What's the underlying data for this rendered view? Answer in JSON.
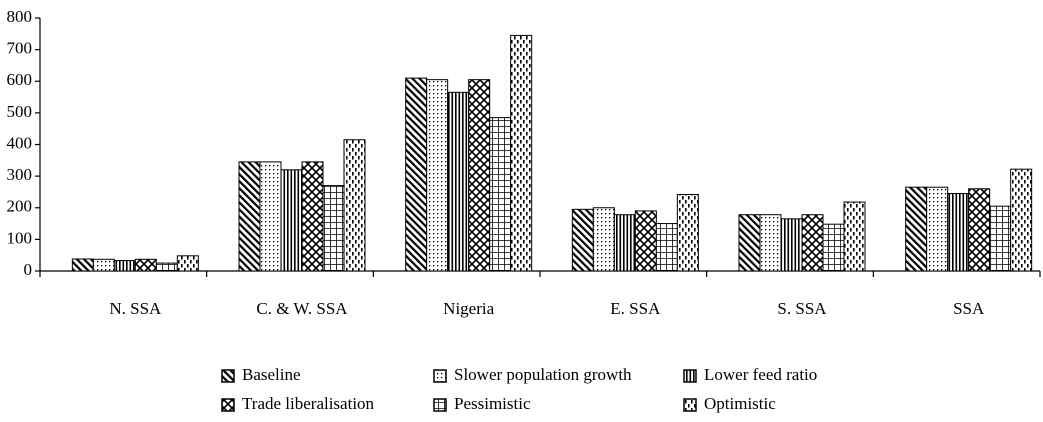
{
  "chart_data": {
    "type": "bar",
    "categories": [
      "N. SSA",
      "C. & W. SSA",
      "Nigeria",
      "E. SSA",
      "S. SSA",
      "SSA"
    ],
    "series": [
      {
        "name": "Baseline",
        "pattern": "diag",
        "values": [
          38,
          345,
          610,
          195,
          178,
          265
        ]
      },
      {
        "name": "Slower population growth",
        "pattern": "dots",
        "values": [
          37,
          345,
          605,
          200,
          178,
          265
        ]
      },
      {
        "name": "Lower feed ratio",
        "pattern": "vert",
        "values": [
          33,
          320,
          565,
          178,
          165,
          245
        ]
      },
      {
        "name": "Trade liberalisation",
        "pattern": "zig",
        "values": [
          37,
          345,
          605,
          190,
          178,
          260
        ]
      },
      {
        "name": "Pessimistic",
        "pattern": "grid",
        "values": [
          25,
          270,
          485,
          150,
          148,
          205
        ]
      },
      {
        "name": "Optimistic",
        "pattern": "dash",
        "values": [
          48,
          415,
          745,
          242,
          218,
          322
        ]
      }
    ],
    "ylim": [
      0,
      800
    ],
    "yticks": [
      0,
      100,
      200,
      300,
      400,
      500,
      600,
      700,
      800
    ]
  }
}
